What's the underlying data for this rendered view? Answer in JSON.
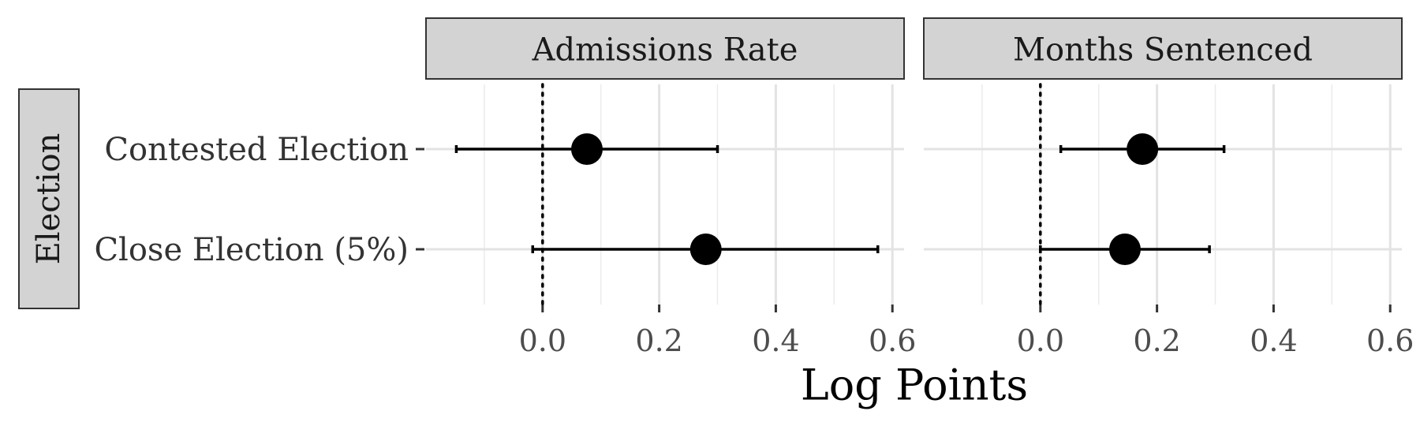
{
  "chart_data": {
    "type": "scatter",
    "xlabel": "Log Points",
    "row_strip": "Election",
    "categories": [
      "Contested Election",
      "Close Election (5%)"
    ],
    "xlim": [
      -0.2,
      0.62
    ],
    "x_ticks": [
      0.0,
      0.2,
      0.4,
      0.6
    ],
    "x_tick_labels": [
      "0.0",
      "0.2",
      "0.4",
      "0.6"
    ],
    "reference_line": 0,
    "grid": true,
    "panels": [
      {
        "title": "Admissions Rate",
        "points": [
          {
            "category": "Contested Election",
            "estimate": 0.076,
            "lower": -0.148,
            "upper": 0.3
          },
          {
            "category": "Close Election (5%)",
            "estimate": 0.28,
            "lower": -0.017,
            "upper": 0.575
          }
        ]
      },
      {
        "title": "Months Sentenced",
        "points": [
          {
            "category": "Contested Election",
            "estimate": 0.175,
            "lower": 0.035,
            "upper": 0.315
          },
          {
            "category": "Close Election (5%)",
            "estimate": 0.145,
            "lower": 0.0,
            "upper": 0.29
          }
        ]
      }
    ]
  }
}
